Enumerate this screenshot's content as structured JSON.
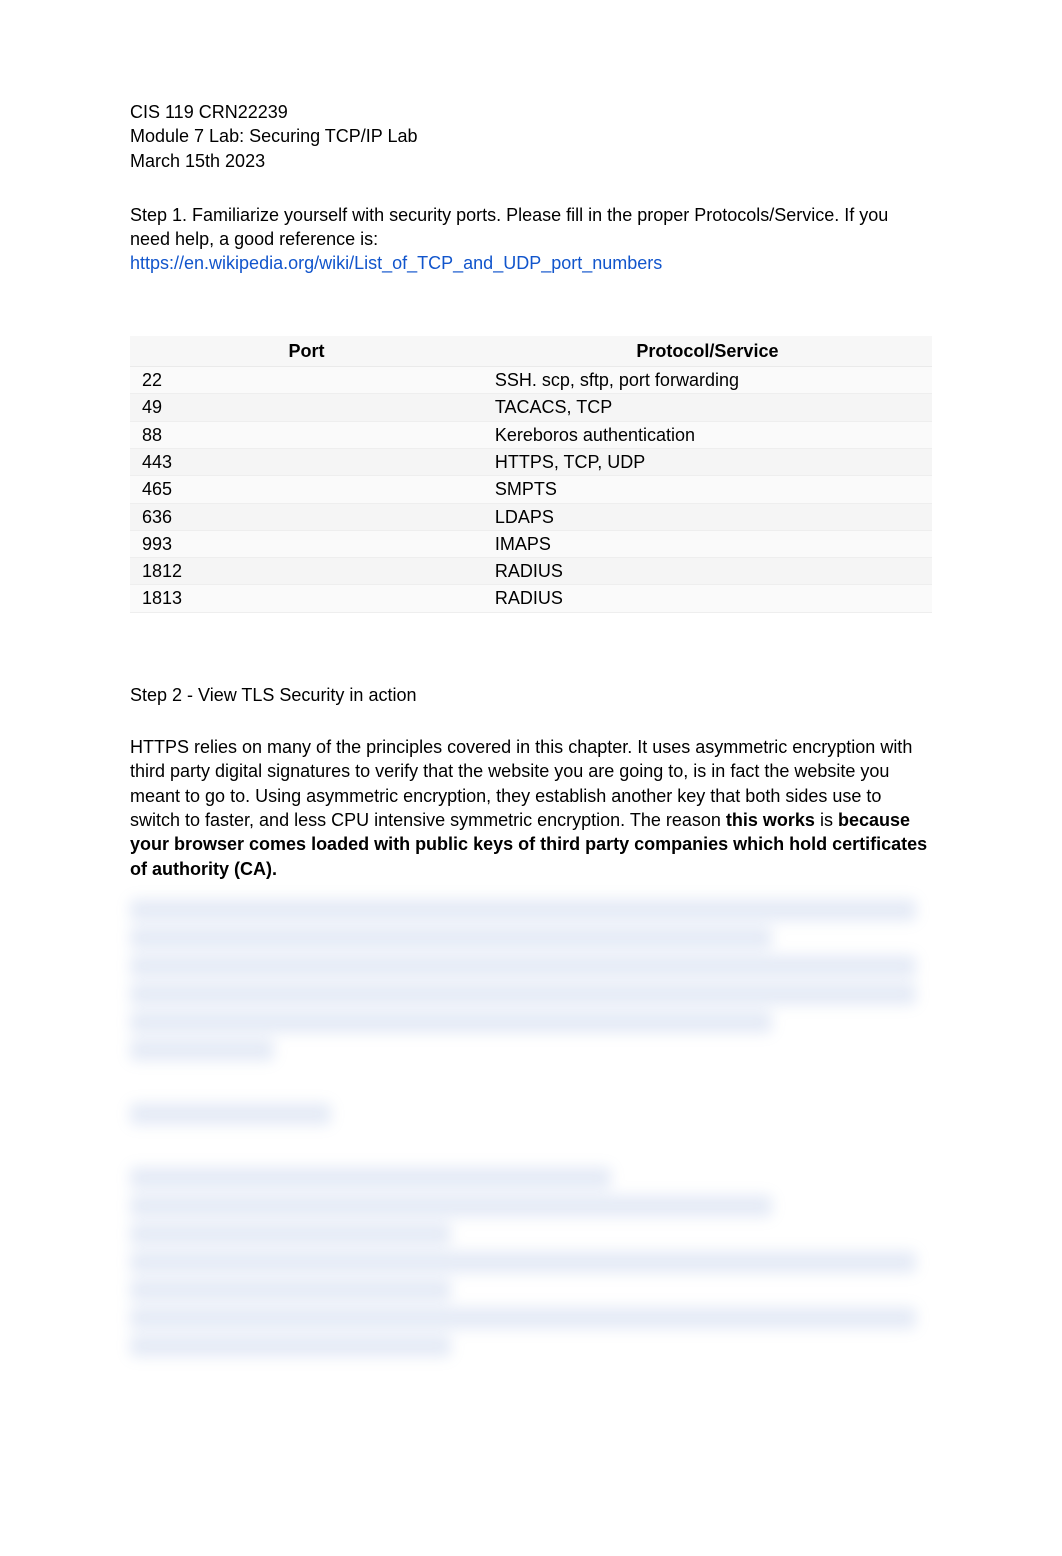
{
  "header": {
    "course": "CIS 119 CRN22239",
    "module": "Module 7 Lab: Securing TCP/IP Lab",
    "date": "March 15th 2023"
  },
  "step1": {
    "intro": "Step 1. Familiarize yourself with security ports. Please fill in the proper Protocols/Service. If you need help, a good reference is:",
    "link_text": "https://en.wikipedia.org/wiki/List_of_TCP_and_UDP_port_numbers",
    "link_href": "https://en.wikipedia.org/wiki/List_of_TCP_and_UDP_port_numbers"
  },
  "table": {
    "headers": {
      "port": "Port",
      "protocol": "Protocol/Service"
    },
    "rows": [
      {
        "port": "22",
        "protocol": "SSH. scp, sftp, port forwarding"
      },
      {
        "port": "49",
        "protocol": "TACACS, TCP"
      },
      {
        "port": "88",
        "protocol": "Kereboros authentication"
      },
      {
        "port": "443",
        "protocol": "HTTPS, TCP, UDP"
      },
      {
        "port": "465",
        "protocol": "SMPTS"
      },
      {
        "port": "636",
        "protocol": "LDAPS"
      },
      {
        "port": "993",
        "protocol": "IMAPS"
      },
      {
        "port": "1812",
        "protocol": "RADIUS"
      },
      {
        "port": "1813",
        "protocol": "RADIUS"
      }
    ]
  },
  "step2": {
    "title": "Step 2 - View TLS Security in action",
    "para_pre": "HTTPS relies on many of the principles covered in this chapter. It uses asymmetric encryption with third party digital signatures to verify that the website you are going to, is in fact the website you meant to go to. Using asymmetric encryption, they establish another key that both sides use to switch to faster, and less CPU intensive symmetric encryption. The reason ",
    "bold1": "this works",
    "mid": " is ",
    "bold2": "because your browser comes loaded with public keys of third party companies which hold certificates of authority (CA)."
  }
}
